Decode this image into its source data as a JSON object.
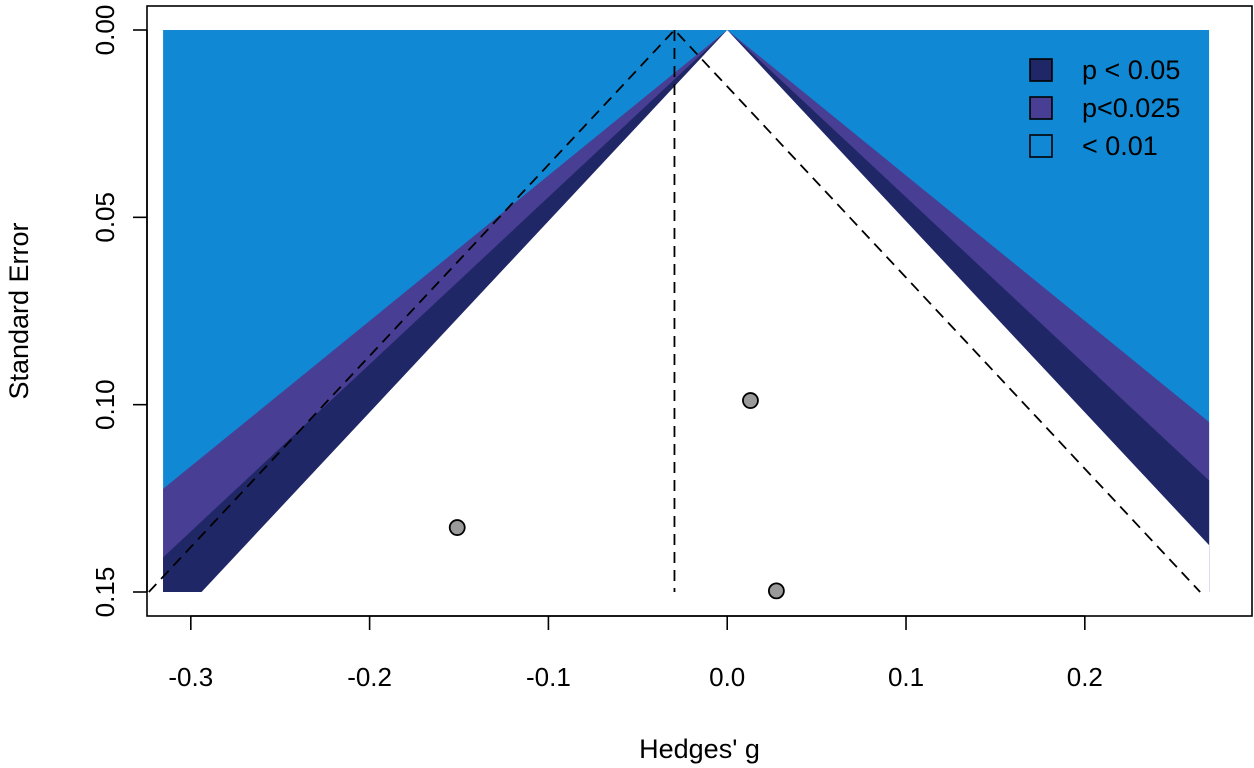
{
  "chart_data": {
    "type": "scatter",
    "subtype": "contour-enhanced funnel plot",
    "title": "",
    "xlabel": "Hedges' g",
    "ylabel": "Standard Error",
    "xlim": [
      -0.3245,
      0.2935
    ],
    "ylim": [
      0.15,
      0.0
    ],
    "y_reversed": true,
    "x_ticks": [
      -0.3,
      -0.2,
      -0.1,
      0.0,
      0.1,
      0.2
    ],
    "x_tick_labels": [
      "-0.3",
      "-0.2",
      "-0.1",
      "0.0",
      "0.1",
      "0.2"
    ],
    "y_ticks": [
      0.0,
      0.05,
      0.1,
      0.15
    ],
    "y_tick_labels": [
      "0.00",
      "0.05",
      "0.10",
      "0.15"
    ],
    "contour_center": 0.0,
    "region_xrange": [
      -0.3155,
      0.2695
    ],
    "pooled_estimate": -0.0295,
    "points": [
      {
        "x": 0.013,
        "y": 0.0989
      },
      {
        "x": -0.151,
        "y": 0.1328
      },
      {
        "x": 0.0275,
        "y": 0.1497
      }
    ],
    "legend": [
      {
        "label": "p < 0.05",
        "color": "#1F2767"
      },
      {
        "label": "p<0.025",
        "color": "#483E94"
      },
      {
        "label": "< 0.01",
        "color": "#1188D3"
      }
    ],
    "legend_position": "top-right",
    "colors": {
      "p05": "#1F2767",
      "p025": "#483E94",
      "p01": "#1188D3",
      "point_fill": "#9A9A9A"
    }
  }
}
